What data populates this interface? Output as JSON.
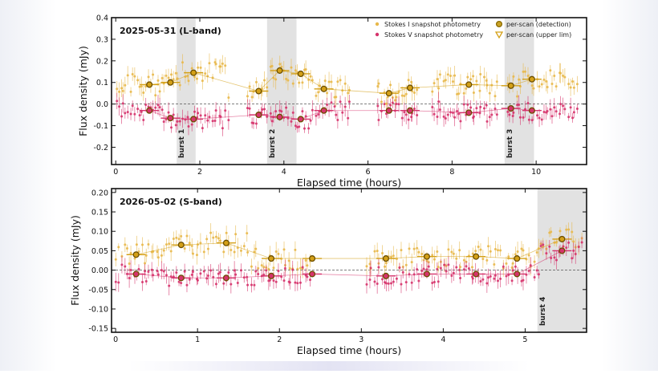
{
  "chart_data": [
    {
      "type": "scatter",
      "panel_title": "2025-05-31 (L-band)",
      "xlabel": "Elapsed time (hours)",
      "ylabel": "Flux density (mJy)",
      "xlim": [
        -0.1,
        11.2
      ],
      "ylim": [
        -0.28,
        0.4
      ],
      "xticks": [
        0,
        2,
        4,
        6,
        8,
        10
      ],
      "yticks": [
        0.4,
        0.3,
        0.2,
        0.1,
        0.0,
        -0.1,
        -0.2
      ],
      "legend": {
        "position": "top-right",
        "entries": [
          {
            "label": "Stokes I  snapshot photometry",
            "marker": "dot",
            "color": "#e8b84a"
          },
          {
            "label": "Stokes V  snapshot photometry",
            "marker": "dot",
            "color": "#d6336c"
          },
          {
            "label": "per-scan (detection)",
            "marker": "circle",
            "color": "#8a6a00"
          },
          {
            "label": "per-scan (upper lim)",
            "marker": "triangle-down",
            "color": "#d4a017"
          }
        ]
      },
      "bursts": [
        {
          "label": "burst 1",
          "x0": 1.45,
          "x1": 1.9
        },
        {
          "label": "burst 2",
          "x0": 3.6,
          "x1": 4.3
        },
        {
          "label": "burst 3",
          "x0": 9.25,
          "x1": 9.95
        }
      ],
      "segments": [
        [
          0.0,
          2.7
        ],
        [
          3.1,
          5.6
        ],
        [
          6.2,
          7.2
        ],
        [
          7.5,
          9.1
        ],
        [
          9.3,
          11.0
        ]
      ],
      "series": [
        {
          "name": "Stokes I",
          "per_scan": [
            {
              "x": 0.8,
              "y": 0.09
            },
            {
              "x": 1.3,
              "y": 0.1
            },
            {
              "x": 1.85,
              "y": 0.145
            },
            {
              "x": 3.4,
              "y": 0.06
            },
            {
              "x": 3.9,
              "y": 0.155
            },
            {
              "x": 4.4,
              "y": 0.14
            },
            {
              "x": 4.95,
              "y": 0.07
            },
            {
              "x": 6.5,
              "y": 0.05
            },
            {
              "x": 7.0,
              "y": 0.075
            },
            {
              "x": 8.4,
              "y": 0.09
            },
            {
              "x": 9.4,
              "y": 0.085
            },
            {
              "x": 9.9,
              "y": 0.115
            }
          ]
        },
        {
          "name": "Stokes V",
          "per_scan": [
            {
              "x": 0.8,
              "y": -0.03
            },
            {
              "x": 1.3,
              "y": -0.065
            },
            {
              "x": 1.85,
              "y": -0.07
            },
            {
              "x": 3.4,
              "y": -0.05
            },
            {
              "x": 3.9,
              "y": -0.06
            },
            {
              "x": 4.4,
              "y": -0.07
            },
            {
              "x": 4.95,
              "y": -0.03
            },
            {
              "x": 6.5,
              "y": -0.03
            },
            {
              "x": 7.0,
              "y": -0.03
            },
            {
              "x": 8.4,
              "y": -0.04
            },
            {
              "x": 9.4,
              "y": -0.02
            },
            {
              "x": 9.9,
              "y": -0.03
            }
          ]
        }
      ]
    },
    {
      "type": "scatter",
      "panel_title": "2026-05-02 (S-band)",
      "xlabel": "Elapsed time (hours)",
      "ylabel": "Flux density (mJy)",
      "xlim": [
        -0.05,
        5.75
      ],
      "ylim": [
        -0.16,
        0.21
      ],
      "xticks": [
        0,
        1,
        2,
        3,
        4,
        5
      ],
      "yticks": [
        0.2,
        0.15,
        0.1,
        0.05,
        0.0,
        -0.05,
        -0.1,
        -0.15
      ],
      "bursts": [
        {
          "label": "burst 4",
          "x0": 5.15,
          "x1": 5.75
        }
      ],
      "segments": [
        [
          0.0,
          2.4
        ],
        [
          3.05,
          5.7
        ]
      ],
      "series": [
        {
          "name": "Stokes I",
          "per_scan": [
            {
              "x": 0.25,
              "y": 0.04
            },
            {
              "x": 0.8,
              "y": 0.065
            },
            {
              "x": 1.35,
              "y": 0.07
            },
            {
              "x": 1.9,
              "y": 0.03
            },
            {
              "x": 2.4,
              "y": 0.03
            },
            {
              "x": 3.3,
              "y": 0.03
            },
            {
              "x": 3.8,
              "y": 0.035
            },
            {
              "x": 4.4,
              "y": 0.035
            },
            {
              "x": 4.9,
              "y": 0.03
            },
            {
              "x": 5.45,
              "y": 0.08
            }
          ]
        },
        {
          "name": "Stokes V",
          "per_scan": [
            {
              "x": 0.25,
              "y": -0.01
            },
            {
              "x": 0.8,
              "y": -0.02
            },
            {
              "x": 1.35,
              "y": -0.02
            },
            {
              "x": 1.9,
              "y": -0.015
            },
            {
              "x": 2.4,
              "y": -0.01
            },
            {
              "x": 3.3,
              "y": -0.015
            },
            {
              "x": 3.8,
              "y": -0.01
            },
            {
              "x": 4.4,
              "y": -0.01
            },
            {
              "x": 4.9,
              "y": -0.01
            },
            {
              "x": 5.45,
              "y": 0.05
            }
          ]
        }
      ]
    }
  ],
  "colors": {
    "stokes_i": "#e8b84a",
    "stokes_i_dark": "#d4a017",
    "stokes_v": "#d6336c",
    "detection_edge": "#6b4e00",
    "burst_fill": "#e2e2e2",
    "zero_line": "#555555"
  }
}
